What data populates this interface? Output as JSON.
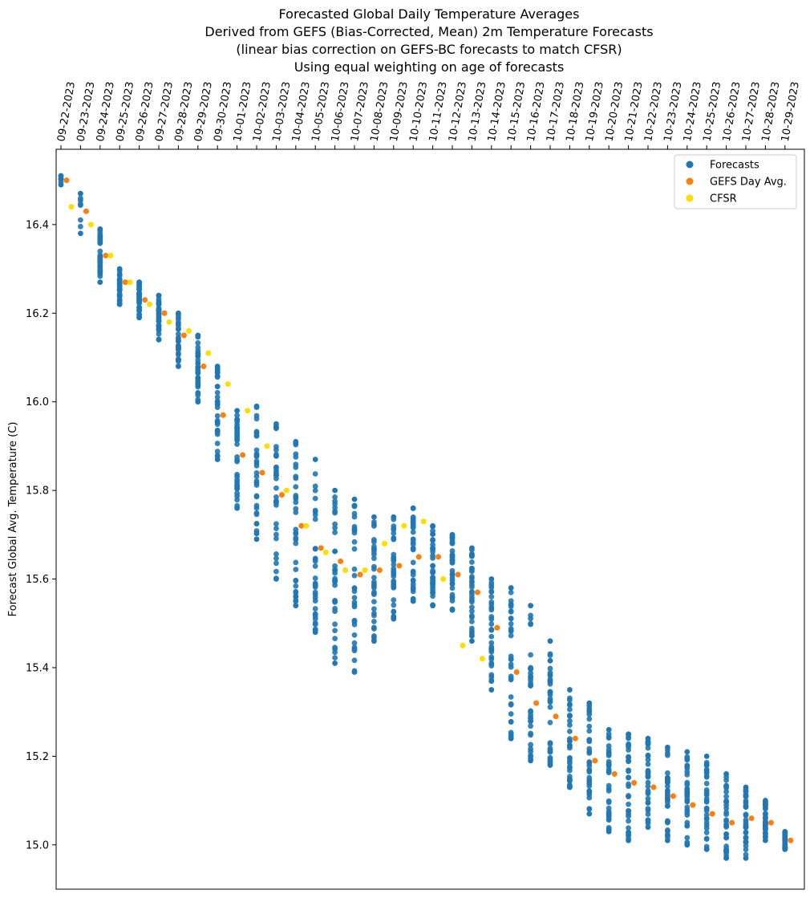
{
  "chart_data": {
    "type": "scatter",
    "title_lines": [
      "Forecasted Global Daily Temperature Averages",
      "Derived from GEFS (Bias-Corrected, Mean) 2m Temperature Forecasts",
      "(linear bias correction on GEFS-BC forecasts to match CFSR)",
      "Using equal weighting on age of forecasts"
    ],
    "ylabel": "Forecast Global Avg. Temperature (C)",
    "ylim": [
      14.9,
      16.57
    ],
    "yticks": [
      15.0,
      15.2,
      15.4,
      15.6,
      15.8,
      16.0,
      16.2,
      16.4
    ],
    "dates": [
      "09-22-2023",
      "09-23-2023",
      "09-24-2023",
      "09-25-2023",
      "09-26-2023",
      "09-27-2023",
      "09-28-2023",
      "09-29-2023",
      "09-30-2023",
      "10-01-2023",
      "10-02-2023",
      "10-03-2023",
      "10-04-2023",
      "10-05-2023",
      "10-06-2023",
      "10-07-2023",
      "10-08-2023",
      "10-09-2023",
      "10-10-2023",
      "10-11-2023",
      "10-12-2023",
      "10-13-2023",
      "10-14-2023",
      "10-15-2023",
      "10-16-2023",
      "10-17-2023",
      "10-18-2023",
      "10-19-2023",
      "10-20-2023",
      "10-21-2023",
      "10-22-2023",
      "10-23-2023",
      "10-24-2023",
      "10-25-2023",
      "10-26-2023",
      "10-27-2023",
      "10-28-2023",
      "10-29-2023"
    ],
    "legend": {
      "position": "top-right",
      "entries": [
        "Forecasts",
        "GEFS Day Avg.",
        "CFSR"
      ]
    },
    "colors": {
      "Forecasts": "#1f77b4",
      "GEFS Day Avg.": "#ff7f0e",
      "CFSR": "#ffdd00"
    },
    "forecast_ranges": [
      [
        16.49,
        16.51
      ],
      [
        16.38,
        16.47
      ],
      [
        16.27,
        16.39
      ],
      [
        16.22,
        16.3
      ],
      [
        16.19,
        16.27
      ],
      [
        16.14,
        16.24
      ],
      [
        16.08,
        16.2
      ],
      [
        16.0,
        16.15
      ],
      [
        15.87,
        16.08
      ],
      [
        15.76,
        15.98
      ],
      [
        15.69,
        15.99
      ],
      [
        15.6,
        15.95
      ],
      [
        15.54,
        15.91
      ],
      [
        15.48,
        15.87
      ],
      [
        15.41,
        15.8
      ],
      [
        15.39,
        15.78
      ],
      [
        15.46,
        15.74
      ],
      [
        15.51,
        15.74
      ],
      [
        15.55,
        15.76
      ],
      [
        15.54,
        15.72
      ],
      [
        15.53,
        15.7
      ],
      [
        15.46,
        15.67
      ],
      [
        15.35,
        15.6
      ],
      [
        15.24,
        15.58
      ],
      [
        15.19,
        15.54
      ],
      [
        15.18,
        15.46
      ],
      [
        15.13,
        15.35
      ],
      [
        15.07,
        15.32
      ],
      [
        15.03,
        15.26
      ],
      [
        15.01,
        15.25
      ],
      [
        15.04,
        15.24
      ],
      [
        15.01,
        15.22
      ],
      [
        15.0,
        15.21
      ],
      [
        14.99,
        15.2
      ],
      [
        14.97,
        15.16
      ],
      [
        14.97,
        15.13
      ],
      [
        15.01,
        15.1
      ],
      [
        14.99,
        15.03
      ]
    ],
    "gefs_day_avg": [
      16.5,
      16.43,
      16.33,
      16.27,
      16.23,
      16.2,
      16.15,
      16.08,
      15.97,
      15.88,
      15.84,
      15.79,
      15.72,
      15.67,
      15.64,
      15.61,
      15.62,
      15.63,
      15.65,
      15.65,
      15.61,
      15.57,
      15.49,
      15.39,
      15.32,
      15.29,
      15.24,
      15.19,
      15.16,
      15.14,
      15.13,
      15.11,
      15.09,
      15.07,
      15.05,
      15.06,
      15.05,
      15.01
    ],
    "cfsr": [
      16.44,
      16.4,
      16.33,
      16.27,
      16.22,
      16.18,
      16.16,
      16.11,
      16.04,
      15.98,
      15.9,
      15.8,
      15.72,
      15.66,
      15.62,
      15.62,
      15.68,
      15.72,
      15.73,
      15.6,
      15.45,
      15.42
    ]
  }
}
